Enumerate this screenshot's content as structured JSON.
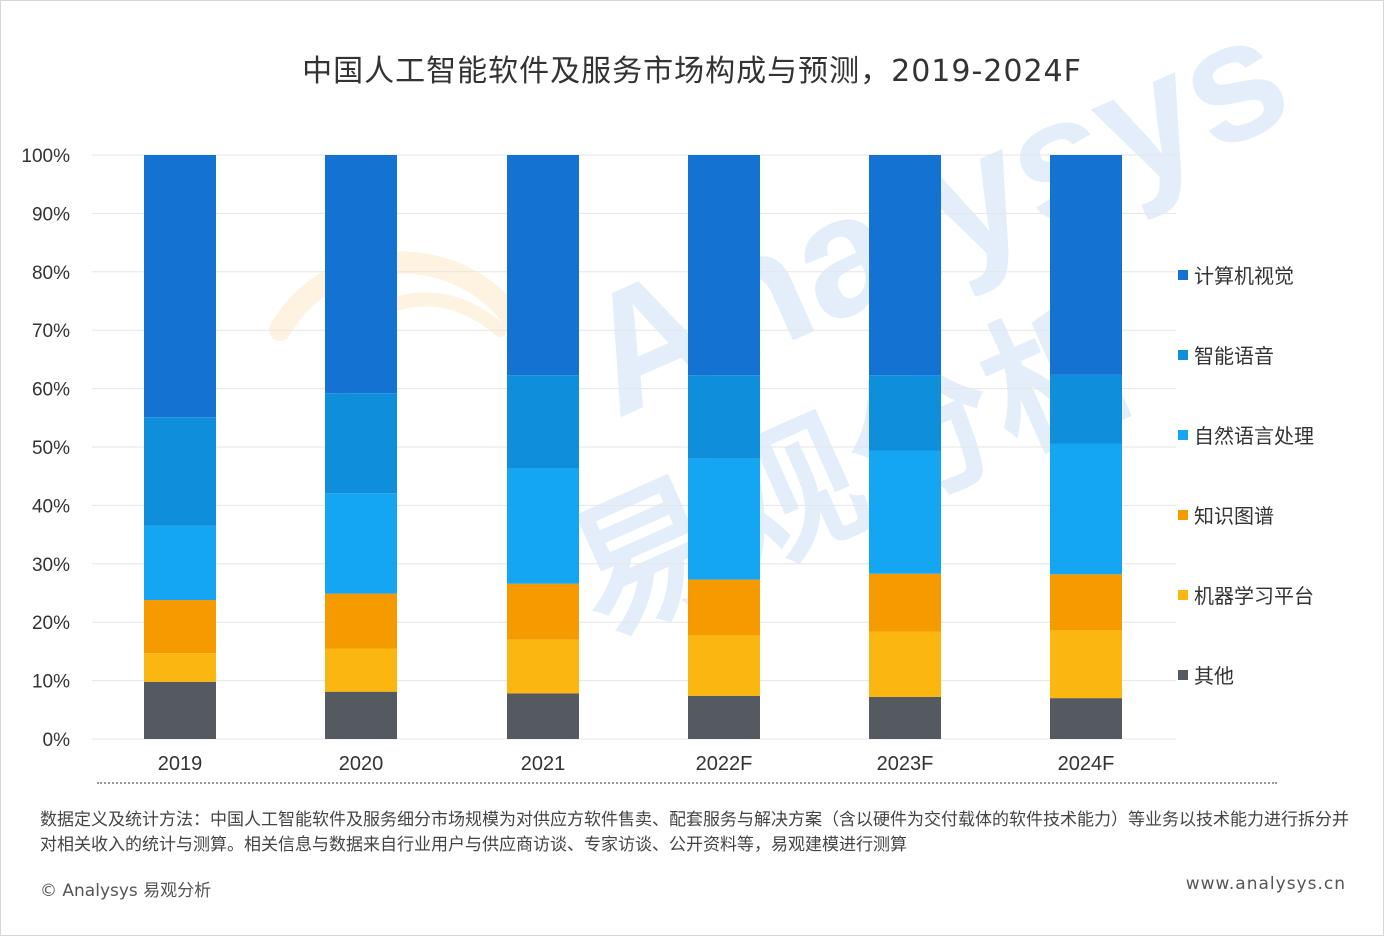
{
  "chart_data": {
    "type": "bar",
    "stacked": true,
    "title": "中国人工智能软件及服务市场构成与预测，2019-2024F",
    "categories": [
      "2019",
      "2020",
      "2021",
      "2022F",
      "2023F",
      "2024F"
    ],
    "ylim": [
      0,
      100
    ],
    "yticks": [
      "0%",
      "10%",
      "20%",
      "30%",
      "40%",
      "50%",
      "60%",
      "70%",
      "80%",
      "90%",
      "100%"
    ],
    "grid": true,
    "legend_position": "right",
    "series": [
      {
        "name": "其他",
        "color": "#555a61",
        "values": [
          9.8,
          8.1,
          7.8,
          7.4,
          7.2,
          7.0
        ]
      },
      {
        "name": "机器学习平台",
        "color": "#fbb610",
        "values": [
          4.9,
          7.4,
          9.2,
          10.3,
          11.2,
          11.6
        ]
      },
      {
        "name": "知识图谱",
        "color": "#f59b00",
        "values": [
          9.1,
          9.4,
          9.6,
          9.6,
          9.9,
          9.6
        ]
      },
      {
        "name": "自然语言处理",
        "color": "#14a6f3",
        "values": [
          12.7,
          17.2,
          19.8,
          20.7,
          21.1,
          22.4
        ]
      },
      {
        "name": "智能语音",
        "color": "#0f8edc",
        "values": [
          18.6,
          17.1,
          15.9,
          14.3,
          12.9,
          11.8
        ]
      },
      {
        "name": "计算机视觉",
        "color": "#1472d3",
        "values": [
          44.9,
          40.8,
          37.7,
          37.7,
          37.7,
          37.6
        ]
      }
    ]
  },
  "legend_order": [
    "计算机视觉",
    "智能语音",
    "自然语言处理",
    "知识图谱",
    "机器学习平台",
    "其他"
  ],
  "note": "数据定义及统计方法：中国人工智能软件及服务细分市场规模为对供应方软件售卖、配套服务与解决方案（含以硬件为交付载体的软件技术能力）等业务以技术能力进行拆分并对相关收入的统计与测算。相关信息与数据来自行业用户与供应商访谈、专家访谈、公开资料等，易观建模进行测算",
  "copyright": "© Analysys 易观分析",
  "website": "www.analysys.cn",
  "watermark": {
    "latin": "Analysys",
    "cjk": "易观分析"
  }
}
